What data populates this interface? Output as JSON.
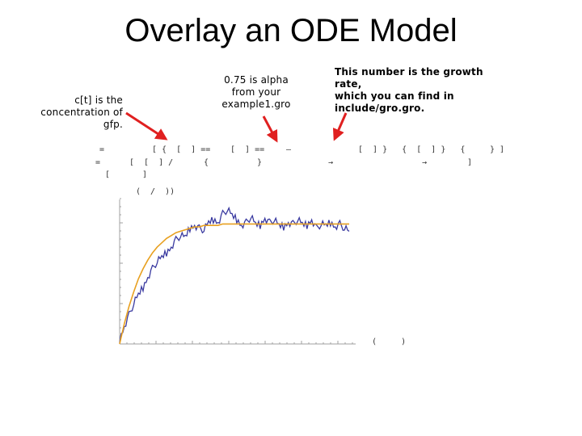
{
  "slide": {
    "title": "Overlay an ODE Model"
  },
  "annotations": {
    "left_note_line1": "c[t] is the",
    "left_note_line2": "concentration of",
    "left_note_line3": "gfp.",
    "mid_note_line1": "0.75 is alpha",
    "mid_note_line2": "from your",
    "mid_note_line3": "example1.gro",
    "right_note_line1": "This number is the growth rate,",
    "right_note_line2": "which you can find in",
    "right_note_line3": "include/gro.gro."
  },
  "code_fragments": {
    "f1": "=",
    "f2": "[ {  [  ] ==",
    "f3": "[  ] ==",
    "f4": "–",
    "f5": "[  ] }   {  [  ] }   {",
    "f6": "} ]",
    "f7": "=",
    "f8": "[  [  ] /",
    "f9": "{",
    "f10": "}",
    "f11": "→",
    "f12": "→",
    "f13": "]",
    "f14": "[",
    "f15": "]",
    "f16": "(  /  ))",
    "f17": "(     )"
  },
  "colors": {
    "arrow": "#e02020",
    "data_line": "#3a3aa0",
    "model_curve": "#e8a020",
    "axis": "#a0a0a0"
  },
  "chart_data": {
    "type": "line",
    "grid": false,
    "series": [
      {
        "values": [
          0.03,
          0.12,
          0.2,
          0.28,
          0.34,
          0.39,
          0.46,
          0.52,
          0.57,
          0.6,
          0.63,
          0.67,
          0.72,
          0.75,
          0.74,
          0.8,
          0.82,
          0.8,
          0.79,
          0.84,
          0.86,
          0.84,
          0.9,
          0.93,
          0.89,
          0.86,
          0.82,
          0.84,
          0.88,
          0.83,
          0.82,
          0.87,
          0.84,
          0.86,
          0.82,
          0.81,
          0.84,
          0.83,
          0.86,
          0.83,
          0.82,
          0.86,
          0.8,
          0.83,
          0.82,
          0.84,
          0.81,
          0.83,
          0.8,
          0.78
        ]
      },
      {
        "values": [
          0.0,
          0.14,
          0.26,
          0.36,
          0.45,
          0.52,
          0.58,
          0.63,
          0.67,
          0.7,
          0.73,
          0.75,
          0.77,
          0.78,
          0.79,
          0.8,
          0.81,
          0.81,
          0.82,
          0.82,
          0.82,
          0.82,
          0.83,
          0.83,
          0.83,
          0.83,
          0.83,
          0.83,
          0.83,
          0.83,
          0.83,
          0.83,
          0.83,
          0.83,
          0.83,
          0.83,
          0.83,
          0.83,
          0.83,
          0.83,
          0.83,
          0.83,
          0.83,
          0.83,
          0.83,
          0.83,
          0.83,
          0.83,
          0.83,
          0.83
        ]
      }
    ],
    "ylim": [
      0,
      1.0
    ]
  }
}
